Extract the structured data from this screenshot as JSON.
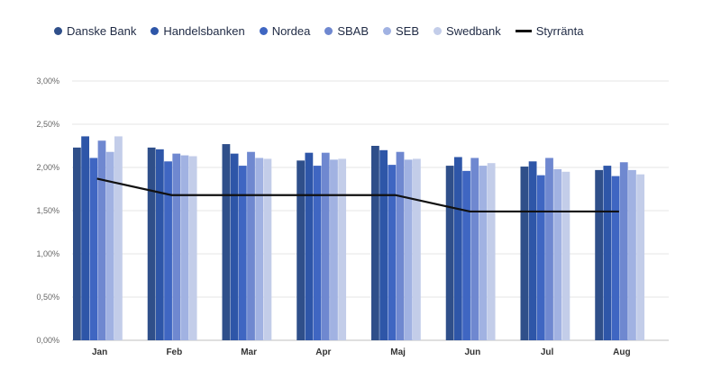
{
  "chart_data": {
    "type": "bar",
    "categories": [
      "Jan",
      "Feb",
      "Mar",
      "Apr",
      "Maj",
      "Jun",
      "Jul",
      "Aug"
    ],
    "ylim": [
      0,
      3
    ],
    "yticks": [
      "0,00%",
      "0,50%",
      "1,00%",
      "1,50%",
      "2,00%",
      "2,50%",
      "3,00%"
    ],
    "series": [
      {
        "name": "Danske Bank",
        "color": "#2f4f8a",
        "values": [
          2.23,
          2.23,
          2.27,
          2.08,
          2.25,
          2.02,
          2.01,
          1.97
        ]
      },
      {
        "name": "Handelsbanken",
        "color": "#2e56a8",
        "values": [
          2.36,
          2.21,
          2.16,
          2.17,
          2.2,
          2.12,
          2.07,
          2.02
        ]
      },
      {
        "name": "Nordea",
        "color": "#3f66c2",
        "values": [
          2.11,
          2.07,
          2.02,
          2.02,
          2.03,
          1.96,
          1.91,
          1.9
        ]
      },
      {
        "name": "SBAB",
        "color": "#6f88d0",
        "values": [
          2.31,
          2.16,
          2.18,
          2.17,
          2.18,
          2.11,
          2.11,
          2.06
        ]
      },
      {
        "name": "SEB",
        "color": "#a1b2e2",
        "values": [
          2.18,
          2.14,
          2.11,
          2.09,
          2.09,
          2.02,
          1.98,
          1.97
        ]
      },
      {
        "name": "Swedbank",
        "color": "#c3cde9",
        "values": [
          2.36,
          2.13,
          2.1,
          2.1,
          2.1,
          2.05,
          1.95,
          1.92
        ]
      }
    ],
    "line": {
      "name": "Styrränta",
      "color": "#111111",
      "values": [
        1.87,
        1.68,
        1.68,
        1.68,
        1.68,
        1.49,
        1.49,
        1.49
      ]
    }
  }
}
